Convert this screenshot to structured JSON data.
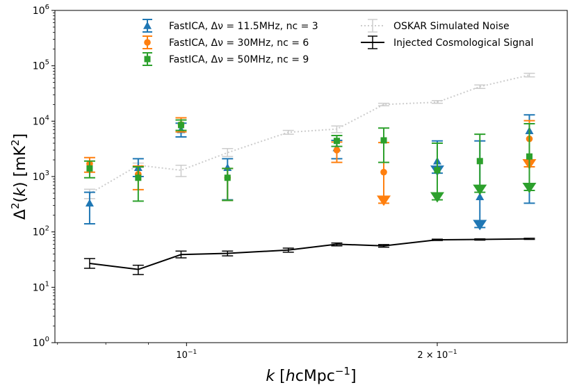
{
  "chart_data": {
    "type": "scatter",
    "title": "",
    "xlabel_parts": [
      "k",
      " [",
      "h",
      "cMpc",
      "−1",
      "]"
    ],
    "ylabel_parts": [
      "Δ",
      "2",
      "(",
      "k",
      ") [mK",
      "2",
      "]"
    ],
    "xscale": "log",
    "yscale": "log",
    "xlim": [
      0.0695,
      0.2865
    ],
    "ylim": [
      1,
      1000000
    ],
    "legend_position": "top",
    "x_ticks": [
      {
        "value": 0.1,
        "base": "10",
        "exp": "−1",
        "prefix": ""
      },
      {
        "value": 0.2,
        "base": "10",
        "exp": "−1",
        "prefix": "2 × "
      }
    ],
    "y_ticks": [
      {
        "value": 1,
        "base": "10",
        "exp": "0"
      },
      {
        "value": 10,
        "base": "10",
        "exp": "1"
      },
      {
        "value": 100,
        "base": "10",
        "exp": "2"
      },
      {
        "value": 1000,
        "base": "10",
        "exp": "3"
      },
      {
        "value": 10000,
        "base": "10",
        "exp": "4"
      },
      {
        "value": 100000,
        "base": "10",
        "exp": "5"
      },
      {
        "value": 1000000,
        "base": "10",
        "exp": "6"
      }
    ],
    "series": [
      {
        "name": "FastICA, Δν = 11.5MHz, nc = 3",
        "color": "#1f77b4",
        "marker": "triangle",
        "x_offset": 0.0,
        "points": [
          {
            "x": 0.0765,
            "y": 330,
            "lo": 140,
            "hi": 520
          },
          {
            "x": 0.0875,
            "y": 1450,
            "lo": 1000,
            "hi": 2100
          },
          {
            "x": 0.0985,
            "y": 7000,
            "lo": 5200,
            "hi": 9200
          },
          {
            "x": 0.112,
            "y": 1450,
            "lo": 380,
            "hi": 2100
          },
          {
            "x": 0.1515,
            "y": 3300,
            "lo": 2100,
            "hi": 4500
          },
          {
            "x": 0.2,
            "y": 1900,
            "lo": 1150,
            "hi": 4400,
            "upper_limit": true
          },
          {
            "x": 0.225,
            "y": 430,
            "lo": 120,
            "hi": 4400,
            "upper_limit": true
          },
          {
            "x": 0.258,
            "y": 6700,
            "lo": 330,
            "hi": 13000
          }
        ]
      },
      {
        "name": "FastICA, Δν = 30MHz, nc = 6",
        "color": "#ff7f0e",
        "marker": "circle",
        "x_offset": 0.0,
        "points": [
          {
            "x": 0.0765,
            "y": 1700,
            "lo": 1200,
            "hi": 2200
          },
          {
            "x": 0.0875,
            "y": 1100,
            "lo": 580,
            "hi": 1550
          },
          {
            "x": 0.0985,
            "y": 8700,
            "lo": 6400,
            "hi": 11500
          },
          {
            "x": 0.112,
            "y": 950,
            "lo": 370,
            "hi": 1400
          },
          {
            "x": 0.1515,
            "y": 3000,
            "lo": 1800,
            "hi": 4200
          },
          {
            "x": 0.1725,
            "y": 1200,
            "lo": 330,
            "hi": 4100,
            "upper_limit": true
          },
          {
            "x": 0.258,
            "y": 4800,
            "lo": 1500,
            "hi": 10200,
            "upper_limit_extra": true
          }
        ]
      },
      {
        "name": "FastICA, Δν = 50MHz, nc = 9",
        "color": "#2ca02c",
        "marker": "square",
        "x_offset": 0.0,
        "points": [
          {
            "x": 0.0765,
            "y": 1400,
            "lo": 950,
            "hi": 1900
          },
          {
            "x": 0.0875,
            "y": 950,
            "lo": 360,
            "hi": 1500
          },
          {
            "x": 0.0985,
            "y": 8500,
            "lo": 6800,
            "hi": 10500
          },
          {
            "x": 0.112,
            "y": 950,
            "lo": 370,
            "hi": 1400
          },
          {
            "x": 0.1515,
            "y": 4400,
            "lo": 3500,
            "hi": 5500
          },
          {
            "x": 0.1725,
            "y": 4500,
            "lo": 1800,
            "hi": 7500
          },
          {
            "x": 0.2,
            "y": 1300,
            "lo": 380,
            "hi": 4000,
            "upper_limit": true
          },
          {
            "x": 0.225,
            "y": 1900,
            "lo": 520,
            "hi": 5800,
            "upper_limit": true
          },
          {
            "x": 0.258,
            "y": 2300,
            "lo": 560,
            "hi": 9000,
            "upper_limit": true
          }
        ]
      },
      {
        "name": "OSKAR Simulated Noise",
        "color": "#cccccc",
        "marker": "none",
        "linestyle": "dotted",
        "points": [
          {
            "x": 0.0765,
            "y": 490,
            "lo": 400,
            "hi": 590
          },
          {
            "x": 0.0875,
            "y": 1600,
            "lo": 1450,
            "hi": 1750
          },
          {
            "x": 0.0985,
            "y": 1300,
            "lo": 1000,
            "hi": 1600
          },
          {
            "x": 0.112,
            "y": 2700,
            "lo": 2300,
            "hi": 3200
          },
          {
            "x": 0.1325,
            "y": 6300,
            "lo": 5800,
            "hi": 6800
          },
          {
            "x": 0.1515,
            "y": 7200,
            "lo": 6200,
            "hi": 8200
          },
          {
            "x": 0.1725,
            "y": 20000,
            "lo": 19000,
            "hi": 21000
          },
          {
            "x": 0.2,
            "y": 22000,
            "lo": 21000,
            "hi": 23500
          },
          {
            "x": 0.225,
            "y": 42000,
            "lo": 39000,
            "hi": 45000
          },
          {
            "x": 0.258,
            "y": 68000,
            "lo": 63000,
            "hi": 73000
          }
        ]
      },
      {
        "name": "Injected Cosmological Signal",
        "color": "#000000",
        "marker": "none",
        "linestyle": "solid",
        "points": [
          {
            "x": 0.0765,
            "y": 27,
            "lo": 22,
            "hi": 33
          },
          {
            "x": 0.0875,
            "y": 21,
            "lo": 17,
            "hi": 25
          },
          {
            "x": 0.0985,
            "y": 39,
            "lo": 34,
            "hi": 45
          },
          {
            "x": 0.112,
            "y": 41,
            "lo": 37,
            "hi": 45
          },
          {
            "x": 0.1325,
            "y": 47,
            "lo": 43,
            "hi": 51
          },
          {
            "x": 0.1515,
            "y": 60,
            "lo": 56,
            "hi": 63
          },
          {
            "x": 0.1725,
            "y": 56,
            "lo": 53,
            "hi": 59
          },
          {
            "x": 0.2,
            "y": 72,
            "lo": 70,
            "hi": 74
          },
          {
            "x": 0.225,
            "y": 73,
            "lo": 71,
            "hi": 75
          },
          {
            "x": 0.258,
            "y": 75,
            "lo": 73,
            "hi": 77
          }
        ]
      }
    ]
  }
}
